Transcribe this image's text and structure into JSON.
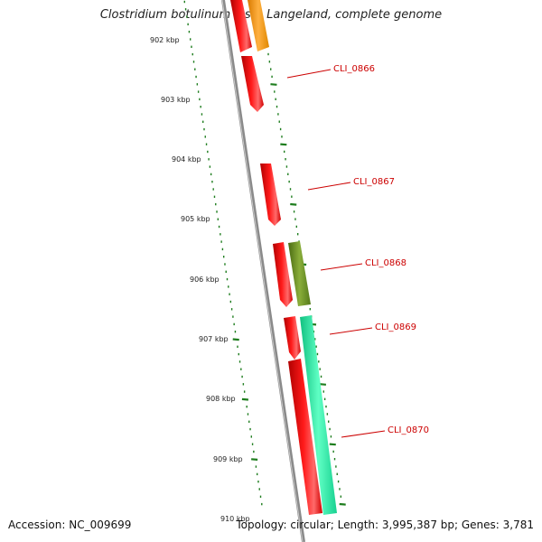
{
  "title": "Clostridium botulinum F str. Langeland, complete genome",
  "footer": {
    "accession": "Accession: NC_009699",
    "stats": "Topology: circular; Length: 3,995,387 bp; Genes: 3,781"
  },
  "colors": {
    "backbone": "#8a8a8a",
    "tick": "#1e7d1e",
    "label": "#cc0000",
    "red": "#ff0000",
    "orange": "#ff9900",
    "olive": "#6b8e23",
    "teal": "#1de9a0"
  },
  "ticks": [
    "902 kbp",
    "903 kbp",
    "904 kbp",
    "905 kbp",
    "906 kbp",
    "907 kbp",
    "908 kbp",
    "909 kbp",
    "910 kbp"
  ],
  "gene_labels": [
    "CLI_0866",
    "CLI_0867",
    "CLI_0868",
    "CLI_0869",
    "CLI_0870"
  ]
}
